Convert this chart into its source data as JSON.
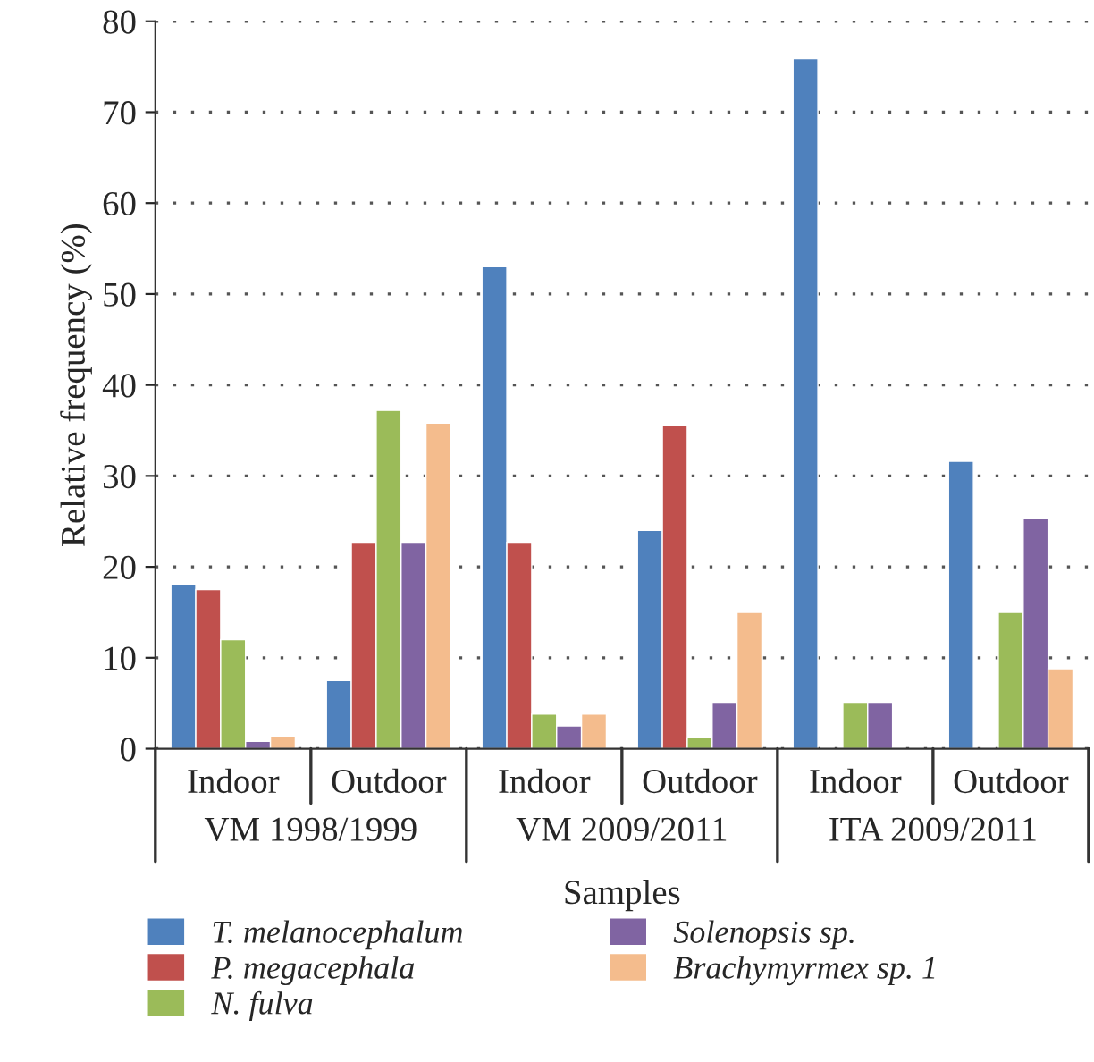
{
  "chart_data": {
    "type": "bar",
    "xlabel": "Samples",
    "ylabel": "Relative frequency (%)",
    "categories": [
      "Indoor",
      "Outdoor",
      "Indoor",
      "Outdoor",
      "Indoor",
      "Outdoor"
    ],
    "series": [
      {
        "name": "T. melanocephalum",
        "color": "#4f81bd",
        "values": [
          18.1,
          7.5,
          53,
          24,
          75.9,
          31.6
        ]
      },
      {
        "name": "P. megacephala",
        "color": "#c0504d",
        "values": [
          17.5,
          22.7,
          22.7,
          35.5,
          null,
          null
        ]
      },
      {
        "name": "N. fulva",
        "color": "#9bbb59",
        "values": [
          12,
          37.2,
          3.8,
          1.2,
          5.1,
          15
        ]
      },
      {
        "name": "Solenopsis sp.",
        "color": "#8064a2",
        "values": [
          0.8,
          22.7,
          2.5,
          5.1,
          5.1,
          25.3
        ]
      },
      {
        "name": "Brachymyrmex sp. 1",
        "color": "#f4bc8d",
        "values": [
          1.4,
          35.8,
          3.8,
          15,
          null,
          8.8
        ]
      }
    ],
    "annotations": [
      "VM 1998/1999",
      "VM 2009/2011",
      "ITA 2009/2011"
    ],
    "ylim": [
      0,
      80
    ],
    "yticks": [
      0,
      10,
      20,
      30,
      40,
      50,
      60,
      70,
      80
    ],
    "grid": "y",
    "legend": "bottom"
  }
}
